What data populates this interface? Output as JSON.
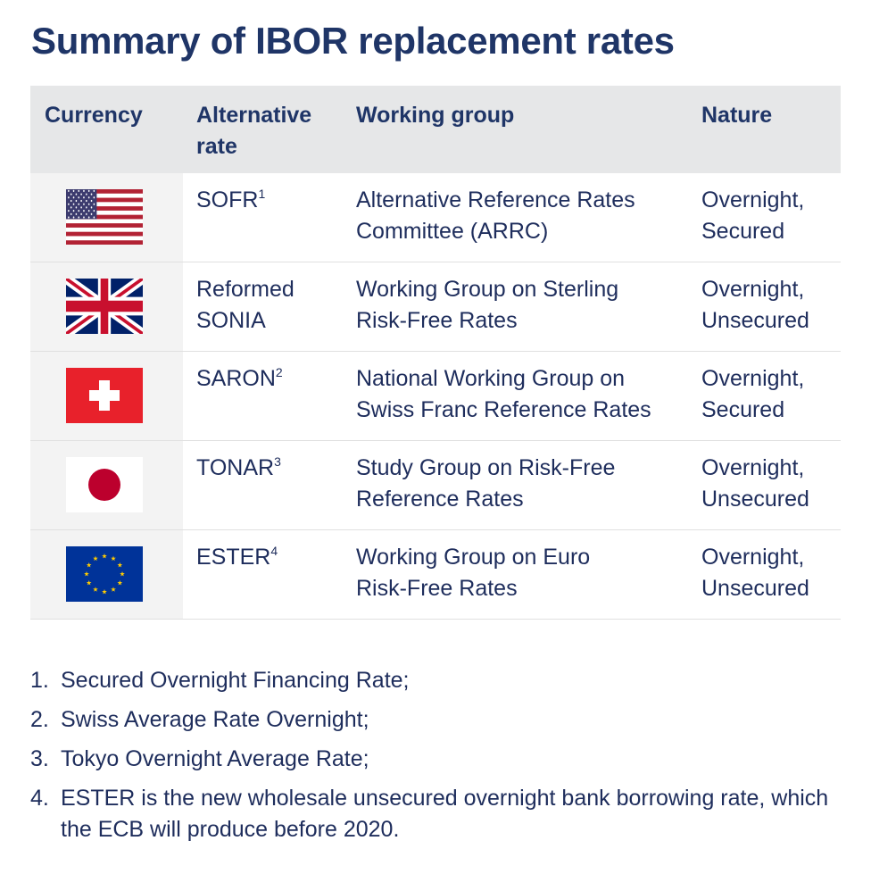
{
  "title": "Summary of IBOR replacement rates",
  "table": {
    "headers": {
      "currency": "Currency",
      "rate_line1": "Alternative",
      "rate_line2": "rate",
      "group": "Working group",
      "nature": "Nature"
    },
    "rows": [
      {
        "flag": "us-flag-icon",
        "rate": "SOFR",
        "sup": "1",
        "group_line1": "Alternative Reference Rates",
        "group_line2": "Committee (ARRC)",
        "nature_line1": "Overnight,",
        "nature_line2": "Secured"
      },
      {
        "flag": "uk-flag-icon",
        "rate": "Reformed",
        "rate_line2": "SONIA",
        "group_line1": "Working Group on Sterling",
        "group_line2": "Risk-Free Rates",
        "nature_line1": "Overnight,",
        "nature_line2": "Unsecured"
      },
      {
        "flag": "swiss-flag-icon",
        "rate": "SARON",
        "sup": "2",
        "group_line1": "National Working Group on",
        "group_line2": "Swiss Franc Reference Rates",
        "nature_line1": "Overnight,",
        "nature_line2": "Secured"
      },
      {
        "flag": "japan-flag-icon",
        "rate": "TONAR",
        "sup": "3",
        "group_line1": "Study Group on Risk-Free",
        "group_line2": "Reference Rates",
        "nature_line1": "Overnight,",
        "nature_line2": "Unsecured"
      },
      {
        "flag": "eu-flag-icon",
        "rate": "ESTER",
        "sup": "4",
        "group_line1": "Working Group on Euro",
        "group_line2": "Risk-Free Rates",
        "nature_line1": "Overnight,",
        "nature_line2": "Unsecured"
      }
    ]
  },
  "notes": [
    {
      "num": "1.",
      "text": "Secured Overnight Financing Rate;"
    },
    {
      "num": "2.",
      "text": "Swiss Average Rate Overnight;"
    },
    {
      "num": "3.",
      "text": "Tokyo Overnight Average Rate;"
    },
    {
      "num": "4.",
      "text": "ESTER is the new wholesale unsecured overnight bank borrowing rate, which the ECB will produce before 2020."
    }
  ],
  "colors": {
    "title": "#1f3567",
    "text": "#1e2d5c",
    "header_bg": "#e6e7e8",
    "flag_cell_bg": "#f3f3f3"
  }
}
